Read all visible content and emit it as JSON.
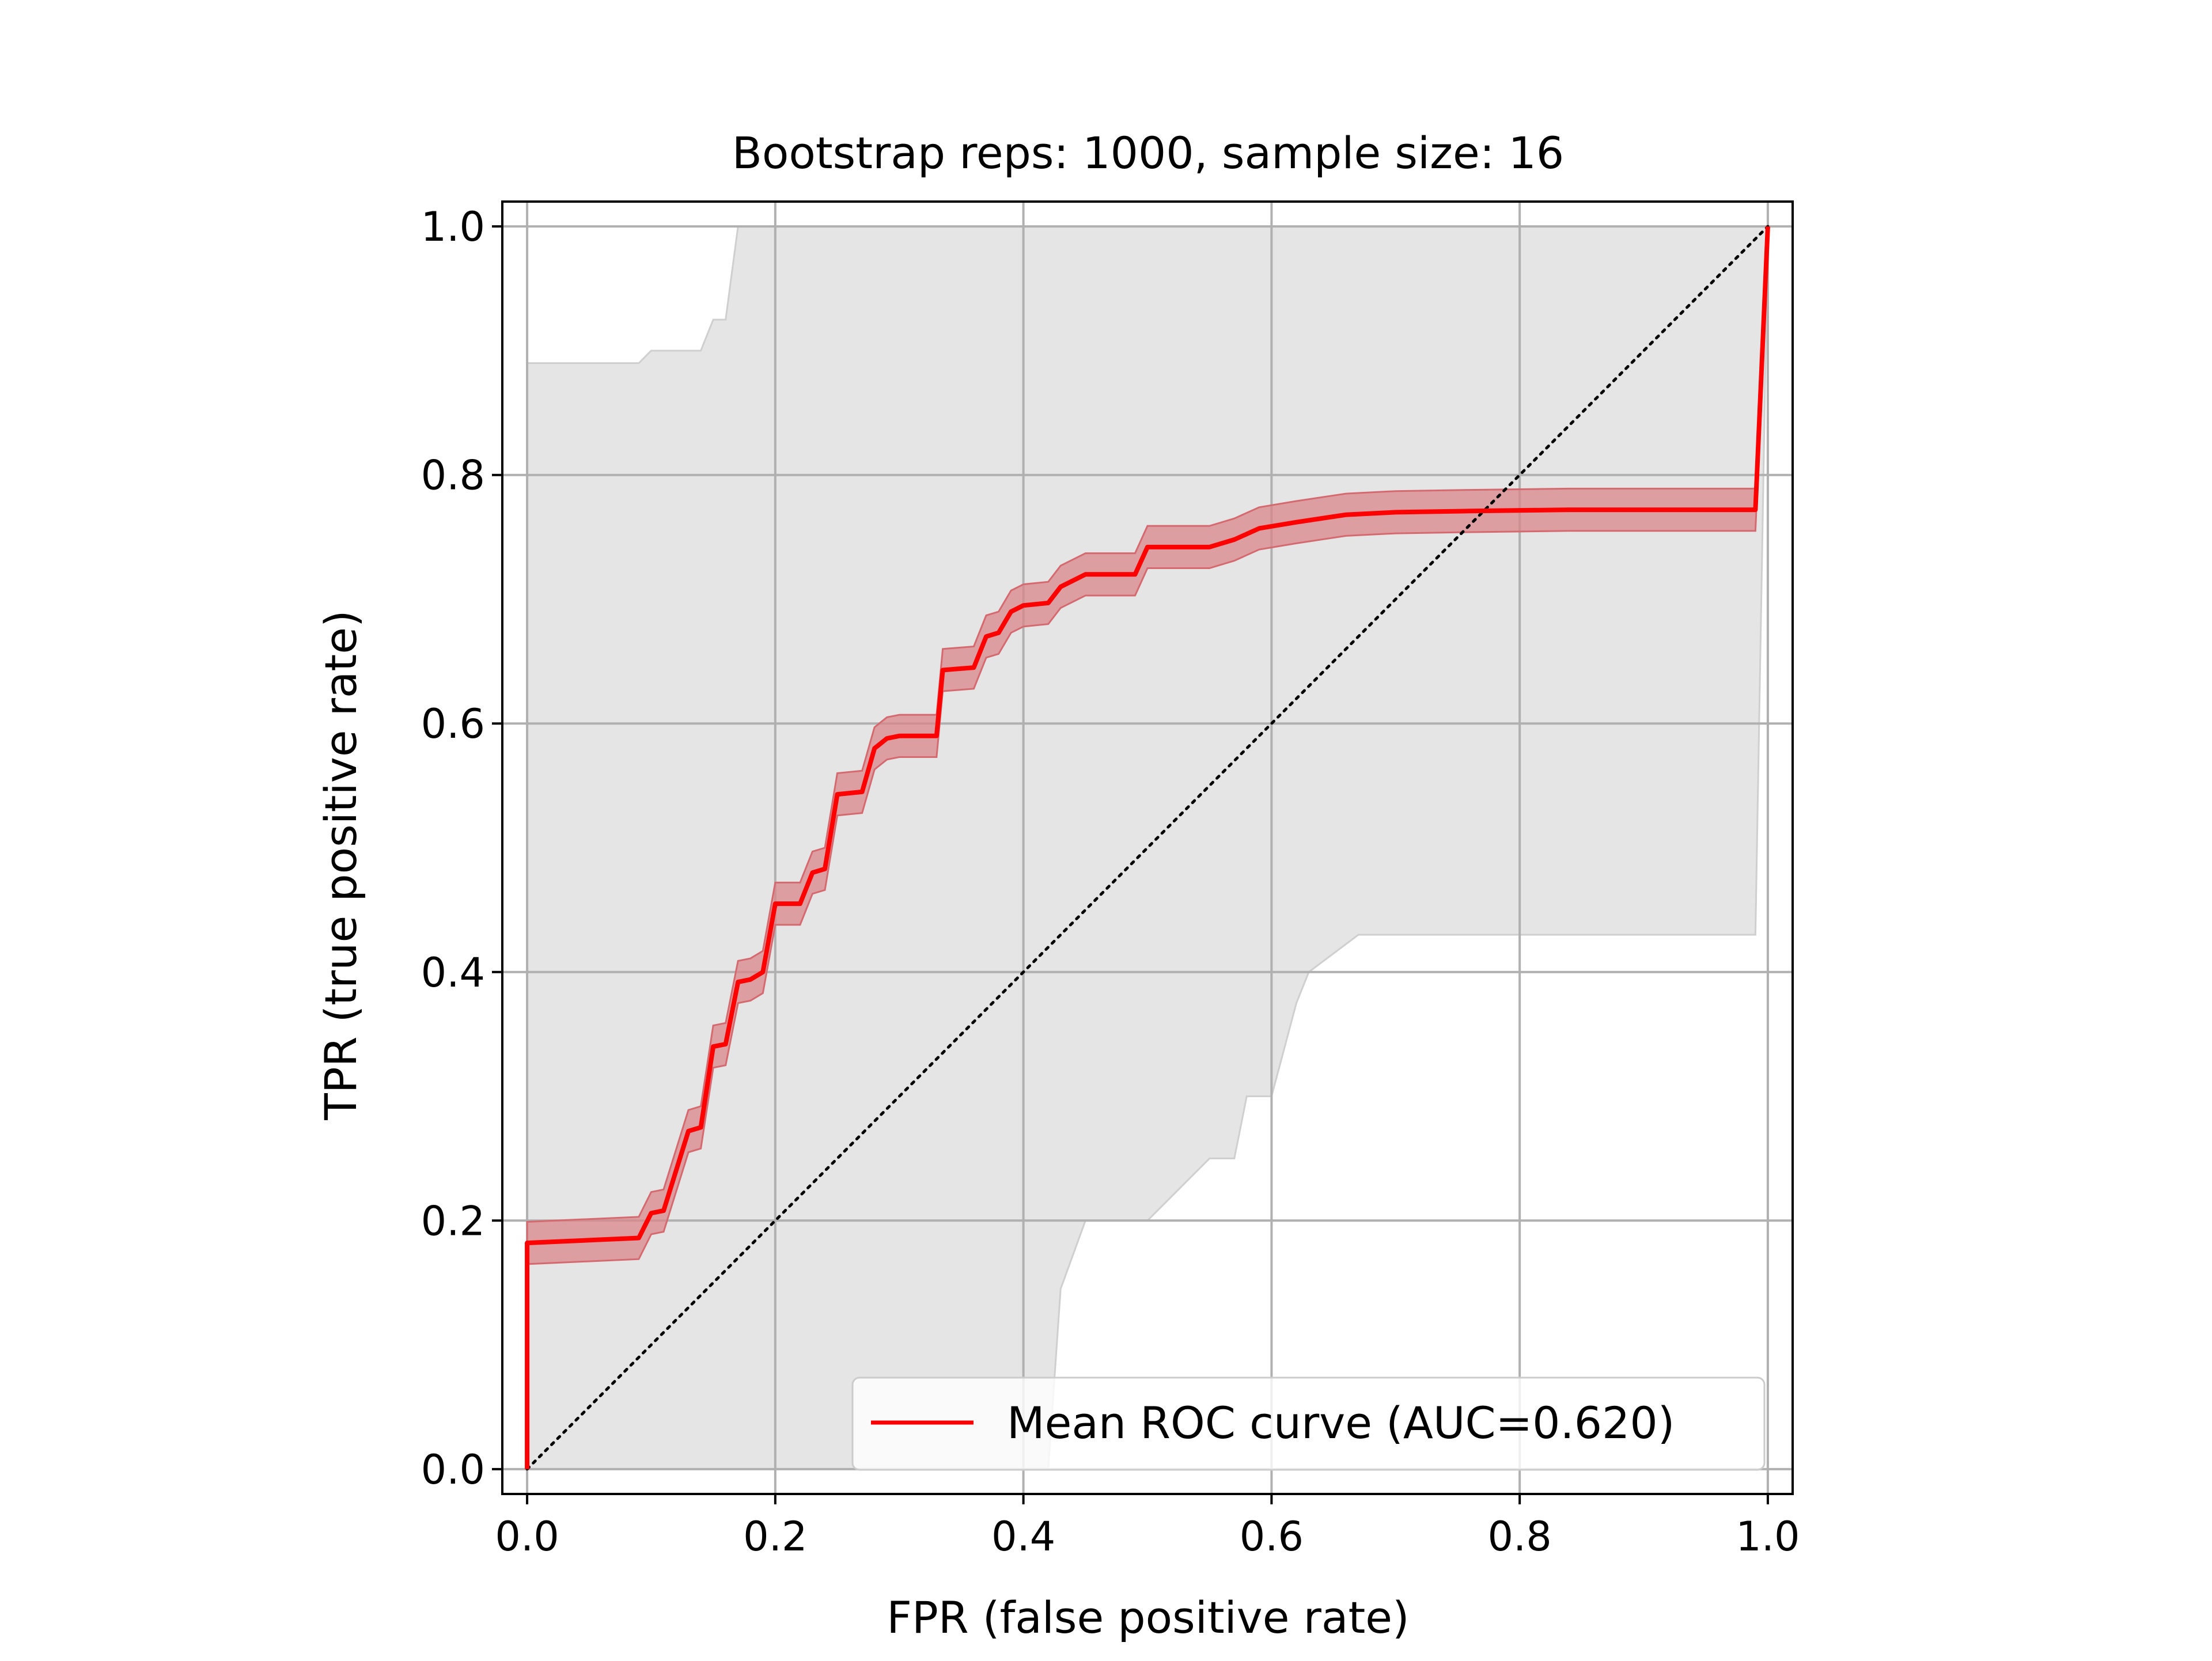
{
  "chart_data": {
    "type": "line",
    "title": "Bootstrap reps: 1000, sample size: 16",
    "xlabel": "FPR (false positive rate)",
    "ylabel": "TPR (true positive rate)",
    "xlim": [
      -0.02,
      1.02
    ],
    "ylim": [
      -0.02,
      1.02
    ],
    "x_ticks": [
      0.0,
      0.2,
      0.4,
      0.6,
      0.8,
      1.0
    ],
    "y_ticks": [
      0.0,
      0.2,
      0.4,
      0.6,
      0.8,
      1.0
    ],
    "x_tick_labels": [
      "0.0",
      "0.2",
      "0.4",
      "0.6",
      "0.8",
      "1.0"
    ],
    "y_tick_labels": [
      "0.0",
      "0.2",
      "0.4",
      "0.6",
      "0.8",
      "1.0"
    ],
    "grid": true,
    "legend_position": "lower-right",
    "colors": {
      "mean_curve": "#ff0000",
      "mean_band": "#d9868a",
      "bootstrap_band": "#e5e5e5",
      "bootstrap_band_edge": "#cfcfcf",
      "diagonal": "#000000",
      "grid": "#b0b0b0"
    },
    "series": [
      {
        "name": "Mean ROC curve (AUC=0.620)",
        "x": [
          0.0,
          0.0,
          0.09,
          0.1,
          0.11,
          0.12,
          0.13,
          0.14,
          0.15,
          0.16,
          0.17,
          0.18,
          0.19,
          0.2,
          0.22,
          0.23,
          0.24,
          0.25,
          0.27,
          0.28,
          0.29,
          0.3,
          0.33,
          0.335,
          0.36,
          0.37,
          0.38,
          0.39,
          0.4,
          0.42,
          0.43,
          0.45,
          0.46,
          0.49,
          0.5,
          0.55,
          0.57,
          0.59,
          0.62,
          0.66,
          0.7,
          0.76,
          0.84,
          0.99,
          1.0
        ],
        "y": [
          0.0,
          0.182,
          0.186,
          0.206,
          0.208,
          0.24,
          0.272,
          0.275,
          0.34,
          0.342,
          0.392,
          0.394,
          0.4,
          0.455,
          0.455,
          0.48,
          0.483,
          0.543,
          0.545,
          0.58,
          0.588,
          0.59,
          0.59,
          0.643,
          0.645,
          0.67,
          0.673,
          0.69,
          0.695,
          0.697,
          0.71,
          0.72,
          0.72,
          0.72,
          0.742,
          0.742,
          0.748,
          0.757,
          0.762,
          0.768,
          0.77,
          0.771,
          0.772,
          0.772,
          1.0
        ]
      },
      {
        "name": "",
        "kind": "diagonal",
        "x": [
          0.0,
          1.0
        ],
        "y": [
          0.0,
          1.0
        ]
      }
    ],
    "mean_band_halfwidth": 0.017,
    "bootstrap_band": {
      "upper": {
        "x": [
          0.0,
          0.09,
          0.1,
          0.14,
          0.15,
          0.16,
          0.17,
          1.0
        ],
        "y": [
          0.89,
          0.89,
          0.9,
          0.9,
          0.925,
          0.925,
          1.0,
          1.0
        ]
      },
      "lower": {
        "x": [
          0.0,
          0.42,
          0.43,
          0.45,
          0.5,
          0.5,
          0.55,
          0.57,
          0.58,
          0.6,
          0.62,
          0.63,
          0.67,
          0.99,
          1.0
        ],
        "y": [
          0.0,
          0.0,
          0.145,
          0.2,
          0.2,
          0.2,
          0.25,
          0.25,
          0.3,
          0.3,
          0.375,
          0.4,
          0.43,
          0.43,
          1.0
        ]
      }
    }
  }
}
